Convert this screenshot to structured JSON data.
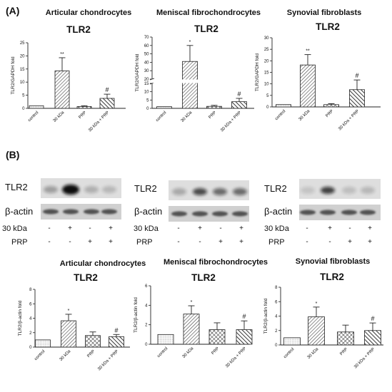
{
  "panels": {
    "a": "(A)",
    "b": "(B)"
  },
  "cells": [
    "Articular chondrocytes",
    "Meniscal fibrochondrocytes",
    "Synovial fibroblasts"
  ],
  "blot": {
    "target_label": "TLR2",
    "control_label": "β-actin",
    "rows": [
      {
        "label": "30 kDa",
        "signs": [
          "-",
          "+",
          "-",
          "+"
        ]
      },
      {
        "label": "PRP",
        "signs": [
          "-",
          "-",
          "+",
          "+"
        ]
      }
    ]
  },
  "colors": {
    "bar_edge": "#222222",
    "plain_fill": "#ffffff",
    "hatch": "#444444",
    "blot_bg": "#d6d6d6",
    "band": "#1a1a1a"
  },
  "chart_data": [
    {
      "type": "bar",
      "cell": "Articular chondrocytes",
      "title": "TLR2",
      "ylabel": "TLR2/GAPDH fold",
      "categories": [
        "control",
        "30 kDa",
        "PRP",
        "30 kDa + PRP"
      ],
      "values": [
        1.0,
        14.3,
        0.7,
        3.8
      ],
      "errors": [
        0,
        5.0,
        0.3,
        1.6
      ],
      "significance": [
        "",
        "**",
        "",
        "#"
      ],
      "ylim": [
        0,
        25
      ],
      "yticks": [
        0,
        5,
        10,
        15,
        20,
        25
      ],
      "broken_axis": false
    },
    {
      "type": "bar",
      "cell": "Meniscal fibrochondrocytes",
      "title": "TLR2",
      "ylabel": "TLR2/GAPDH fold",
      "categories": [
        "control",
        "30 kDa",
        "PRP",
        "30 kDa + PRP"
      ],
      "values": [
        1.0,
        41.0,
        1.2,
        4.0
      ],
      "errors": [
        0,
        19.0,
        0.6,
        2.0
      ],
      "significance": [
        "",
        "*",
        "",
        "#"
      ],
      "ylim": [
        0,
        70
      ],
      "yticks": [
        0,
        5,
        10,
        15,
        20,
        30,
        40,
        50,
        60,
        70
      ],
      "broken_axis": true,
      "break": [
        15,
        20
      ]
    },
    {
      "type": "bar",
      "cell": "Synovial fibroblasts",
      "title": "TLR2",
      "ylabel": "TLR2/GAPDH fold",
      "categories": [
        "control",
        "30 kDa",
        "PRP",
        "30 kDa + PRP"
      ],
      "values": [
        1.0,
        18.2,
        1.0,
        7.5
      ],
      "errors": [
        0,
        4.5,
        0.4,
        4.2
      ],
      "significance": [
        "",
        "**",
        "",
        "#"
      ],
      "ylim": [
        0,
        30
      ],
      "yticks": [
        0,
        5,
        10,
        15,
        20,
        25,
        30
      ],
      "broken_axis": false
    },
    {
      "type": "bar",
      "cell": "Articular chondrocytes",
      "title": "TLR2",
      "ylabel": "TLR2/β-actin fold",
      "categories": [
        "control",
        "30 kDa",
        "PRP",
        "30 kDa + PRP"
      ],
      "values": [
        1.0,
        3.65,
        1.6,
        1.45
      ],
      "errors": [
        0,
        0.9,
        0.5,
        0.3
      ],
      "significance": [
        "",
        "*",
        "",
        "#"
      ],
      "ylim": [
        0,
        8
      ],
      "yticks": [
        0,
        2,
        4,
        6,
        8
      ],
      "broken_axis": false
    },
    {
      "type": "bar",
      "cell": "Meniscal fibrochondrocytes",
      "title": "TLR2",
      "ylabel": "TLR2/β-actin fold",
      "categories": [
        "control",
        "30 kDa",
        "PRP",
        "30 kDa + PRP"
      ],
      "values": [
        1.0,
        3.1,
        1.5,
        1.5
      ],
      "errors": [
        0,
        0.85,
        0.7,
        0.9
      ],
      "significance": [
        "",
        "*",
        "",
        "#"
      ],
      "ylim": [
        0,
        6
      ],
      "yticks": [
        0,
        2,
        4,
        6
      ],
      "broken_axis": false
    },
    {
      "type": "bar",
      "cell": "Synovial fibroblasts",
      "title": "TLR2",
      "ylabel": "TLR2/β-actin fold",
      "categories": [
        "control",
        "30 kDa",
        "PRP",
        "30 kDa + PRP"
      ],
      "values": [
        1.0,
        3.9,
        1.8,
        2.0
      ],
      "errors": [
        0,
        1.35,
        0.95,
        1.05
      ],
      "significance": [
        "",
        "*",
        "",
        "#"
      ],
      "ylim": [
        0,
        8
      ],
      "yticks": [
        0,
        2,
        4,
        6,
        8
      ],
      "broken_axis": false
    }
  ]
}
